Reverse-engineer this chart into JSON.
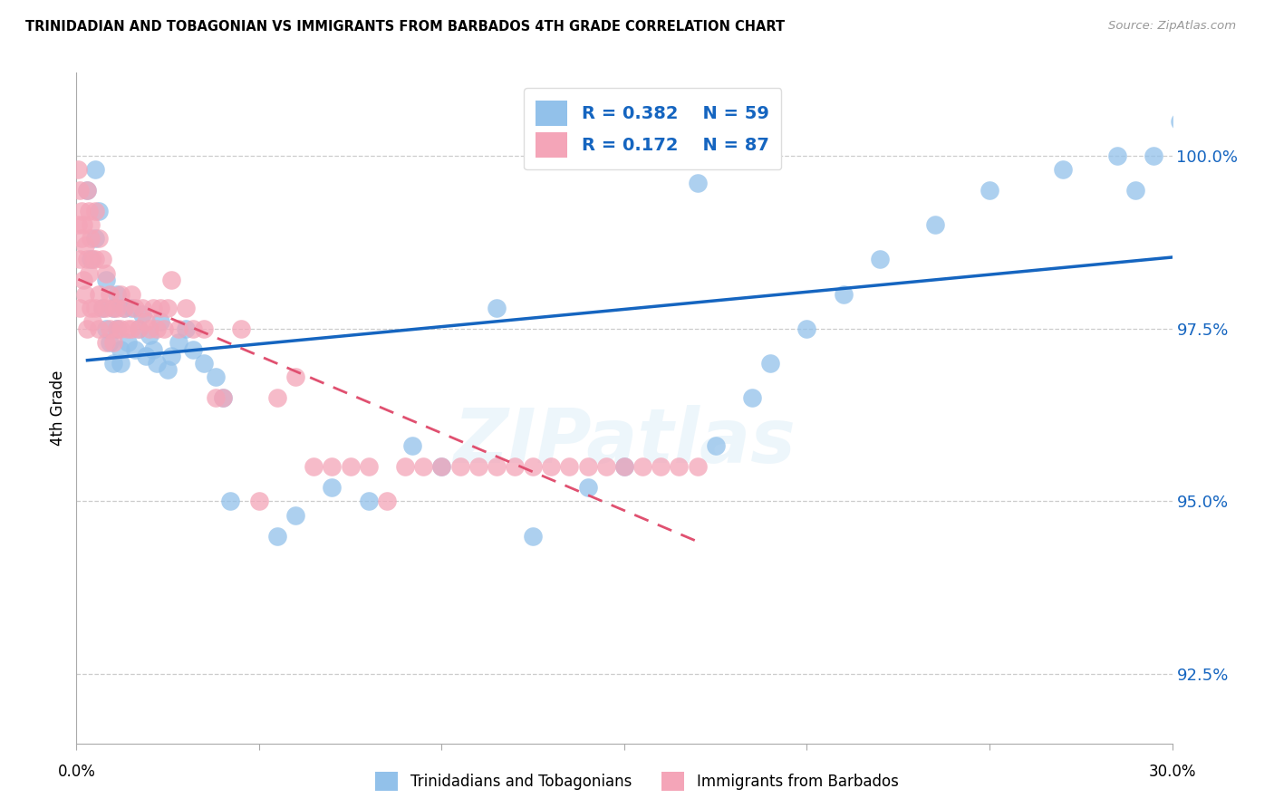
{
  "title": "TRINIDADIAN AND TOBAGONIAN VS IMMIGRANTS FROM BARBADOS 4TH GRADE CORRELATION CHART",
  "source": "Source: ZipAtlas.com",
  "ylabel": "4th Grade",
  "xlim": [
    0.0,
    30.0
  ],
  "ylim": [
    91.5,
    101.2
  ],
  "yticks": [
    92.5,
    95.0,
    97.5,
    100.0
  ],
  "ytick_labels": [
    "92.5%",
    "95.0%",
    "97.5%",
    "100.0%"
  ],
  "legend_r1": "R = 0.382",
  "legend_n1": "N = 59",
  "legend_r2": "R = 0.172",
  "legend_n2": "N = 87",
  "blue_color": "#92C1EA",
  "pink_color": "#F4A5B8",
  "trendline_blue": "#1565C0",
  "trendline_pink": "#E05070",
  "blue_x": [
    0.3,
    0.4,
    0.5,
    0.5,
    0.6,
    0.7,
    0.8,
    0.8,
    0.9,
    1.0,
    1.0,
    1.1,
    1.1,
    1.2,
    1.2,
    1.3,
    1.4,
    1.5,
    1.6,
    1.7,
    1.8,
    1.9,
    2.0,
    2.1,
    2.2,
    2.3,
    2.5,
    2.6,
    2.8,
    3.0,
    3.2,
    3.5,
    3.8,
    4.0,
    4.2,
    5.5,
    6.0,
    7.0,
    8.0,
    9.2,
    10.0,
    11.5,
    12.5,
    14.0,
    15.0,
    17.0,
    17.5,
    18.5,
    19.0,
    20.0,
    21.0,
    22.0,
    23.5,
    25.0,
    27.0,
    28.5,
    29.0,
    29.5,
    30.2
  ],
  "blue_y": [
    99.5,
    98.5,
    99.8,
    98.8,
    99.2,
    97.8,
    97.5,
    98.2,
    97.3,
    97.0,
    97.8,
    97.5,
    98.0,
    97.2,
    97.0,
    97.8,
    97.3,
    97.8,
    97.2,
    97.5,
    97.7,
    97.1,
    97.4,
    97.2,
    97.0,
    97.6,
    96.9,
    97.1,
    97.3,
    97.5,
    97.2,
    97.0,
    96.8,
    96.5,
    95.0,
    94.5,
    94.8,
    95.2,
    95.0,
    95.8,
    95.5,
    97.8,
    94.5,
    95.2,
    95.5,
    99.6,
    95.8,
    96.5,
    97.0,
    97.5,
    98.0,
    98.5,
    99.0,
    99.5,
    99.8,
    100.0,
    99.5,
    100.0,
    100.5
  ],
  "pink_x": [
    0.05,
    0.05,
    0.1,
    0.1,
    0.1,
    0.15,
    0.15,
    0.2,
    0.2,
    0.25,
    0.25,
    0.3,
    0.3,
    0.3,
    0.35,
    0.35,
    0.4,
    0.4,
    0.4,
    0.45,
    0.45,
    0.5,
    0.5,
    0.5,
    0.6,
    0.6,
    0.6,
    0.7,
    0.7,
    0.8,
    0.8,
    0.8,
    0.9,
    0.9,
    1.0,
    1.0,
    1.1,
    1.1,
    1.2,
    1.2,
    1.3,
    1.4,
    1.5,
    1.5,
    1.6,
    1.7,
    1.8,
    1.9,
    2.0,
    2.1,
    2.2,
    2.3,
    2.4,
    2.5,
    2.6,
    2.8,
    3.0,
    3.2,
    3.5,
    3.8,
    4.0,
    4.5,
    5.0,
    5.5,
    6.0,
    6.5,
    7.0,
    7.5,
    8.0,
    8.5,
    9.0,
    9.5,
    10.0,
    10.5,
    11.0,
    11.5,
    12.0,
    12.5,
    13.0,
    13.5,
    14.0,
    14.5,
    15.0,
    15.5,
    16.0,
    16.5,
    17.0
  ],
  "pink_y": [
    99.8,
    99.0,
    99.5,
    98.5,
    97.8,
    99.2,
    98.8,
    99.0,
    98.2,
    98.7,
    98.0,
    99.5,
    98.5,
    97.5,
    99.2,
    98.3,
    99.0,
    98.8,
    97.8,
    98.5,
    97.6,
    99.2,
    98.5,
    97.8,
    98.8,
    98.0,
    97.5,
    98.5,
    97.8,
    98.3,
    97.8,
    97.3,
    98.0,
    97.5,
    97.8,
    97.3,
    97.8,
    97.5,
    98.0,
    97.5,
    97.8,
    97.5,
    98.0,
    97.5,
    97.8,
    97.5,
    97.8,
    97.6,
    97.5,
    97.8,
    97.5,
    97.8,
    97.5,
    97.8,
    98.2,
    97.5,
    97.8,
    97.5,
    97.5,
    96.5,
    96.5,
    97.5,
    95.0,
    96.5,
    96.8,
    95.5,
    95.5,
    95.5,
    95.5,
    95.0,
    95.5,
    95.5,
    95.5,
    95.5,
    95.5,
    95.5,
    95.5,
    95.5,
    95.5,
    95.5,
    95.5,
    95.5,
    95.5,
    95.5,
    95.5,
    95.5,
    95.5
  ]
}
